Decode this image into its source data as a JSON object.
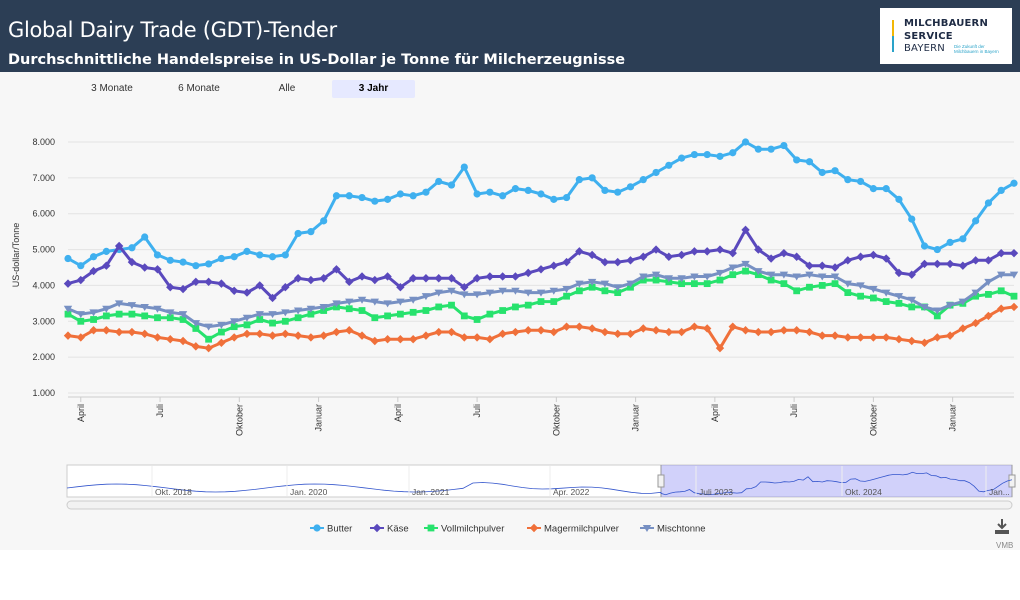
{
  "header": {
    "title": "Global Dairy Trade (GDT)-Tender",
    "subtitle": "Durchschnittliche Handelspreise in US-Dollar je Tonne für Milcherzeugnisse"
  },
  "logo": {
    "line1": "MILCHBAUERN",
    "line2": "SERVICE",
    "line3": "BAYERN",
    "tagline": "Die Zukunft der Milchbauern in Bayern"
  },
  "range_buttons": [
    {
      "label": "3 Monate",
      "active": false
    },
    {
      "label": "6 Monate",
      "active": false
    },
    {
      "label": "Alle",
      "active": false
    },
    {
      "label": "3 Jahr",
      "active": true
    }
  ],
  "navigator": {
    "labels": [
      "Okt. 2018",
      "Jan. 2020",
      "Jan. 2021",
      "Apr. 2022",
      "Juli 2023",
      "Okt. 2024",
      "Jan..."
    ]
  },
  "credit": "VMB",
  "colors": {
    "butter": "#3fb0ef",
    "kaese": "#5a49bd",
    "vollmilch": "#27e26d",
    "mager": "#f0703a",
    "misch": "#7790c3"
  },
  "chart_data": {
    "type": "line",
    "title": "",
    "xlabel": "",
    "ylabel": "US-dollar/Tonne",
    "ylim": [
      1000,
      8500
    ],
    "yticks": [
      "1.000",
      "2.000",
      "3.000",
      "4.000",
      "5.000",
      "6.000",
      "7.000",
      "8.000"
    ],
    "x_tick_labels": [
      "April",
      "Juli",
      "Oktober",
      "Januar",
      "April",
      "Juli",
      "Oktober",
      "Januar",
      "April",
      "Juli",
      "Oktober",
      "Januar"
    ],
    "grid": true,
    "legend_position": "bottom",
    "series": [
      {
        "name": "Butter",
        "color": "#3fb0ef",
        "marker": "circle",
        "values": [
          4750,
          4550,
          4800,
          4950,
          5000,
          5050,
          5350,
          4850,
          4700,
          4650,
          4550,
          4600,
          4750,
          4800,
          4950,
          4850,
          4800,
          4850,
          5450,
          5500,
          5800,
          6500,
          6500,
          6450,
          6350,
          6400,
          6550,
          6500,
          6600,
          6900,
          6800,
          7300,
          6550,
          6600,
          6500,
          6700,
          6650,
          6550,
          6400,
          6450,
          6950,
          7000,
          6650,
          6600,
          6750,
          6950,
          7150,
          7350,
          7550,
          7650,
          7650,
          7600,
          7700,
          8000,
          7800,
          7800,
          7900,
          7500,
          7450,
          7150,
          7200,
          6950,
          6900,
          6700,
          6700,
          6400,
          5850,
          5100,
          5000,
          5200,
          5300,
          5800,
          6300,
          6650,
          6850
        ]
      },
      {
        "name": "Käse",
        "color": "#5a49bd",
        "marker": "diamond",
        "values": [
          4050,
          4150,
          4400,
          4550,
          5100,
          4650,
          4500,
          4450,
          3950,
          3900,
          4100,
          4100,
          4050,
          3850,
          3800,
          4000,
          3650,
          3950,
          4200,
          4150,
          4200,
          4450,
          4100,
          4250,
          4150,
          4250,
          3950,
          4200,
          4200,
          4200,
          4200,
          3950,
          4200,
          4250,
          4250,
          4250,
          4350,
          4450,
          4550,
          4650,
          4950,
          4850,
          4650,
          4650,
          4700,
          4800,
          5000,
          4800,
          4850,
          4950,
          4950,
          5000,
          4900,
          5550,
          5000,
          4750,
          4900,
          4800,
          4550,
          4550,
          4500,
          4700,
          4800,
          4850,
          4750,
          4350,
          4300,
          4600,
          4600,
          4600,
          4550,
          4700,
          4700,
          4900,
          4900
        ]
      },
      {
        "name": "Vollmilchpulver",
        "color": "#27e26d",
        "marker": "square",
        "values": [
          3200,
          3000,
          3050,
          3150,
          3200,
          3200,
          3150,
          3100,
          3100,
          3050,
          2800,
          2500,
          2700,
          2850,
          2900,
          3050,
          2950,
          3000,
          3100,
          3200,
          3300,
          3400,
          3350,
          3300,
          3100,
          3150,
          3200,
          3250,
          3300,
          3400,
          3450,
          3150,
          3050,
          3200,
          3300,
          3400,
          3450,
          3550,
          3550,
          3700,
          3850,
          3950,
          3850,
          3800,
          3950,
          4150,
          4150,
          4100,
          4050,
          4050,
          4050,
          4150,
          4300,
          4400,
          4300,
          4150,
          4050,
          3850,
          3950,
          4000,
          4050,
          3800,
          3700,
          3650,
          3550,
          3500,
          3400,
          3400,
          3150,
          3450,
          3500,
          3700,
          3750,
          3850,
          3700
        ]
      },
      {
        "name": "Magermilchpulver",
        "color": "#f0703a",
        "marker": "diamond",
        "values": [
          2600,
          2550,
          2750,
          2750,
          2700,
          2700,
          2650,
          2550,
          2500,
          2450,
          2300,
          2250,
          2400,
          2550,
          2650,
          2650,
          2600,
          2650,
          2600,
          2550,
          2600,
          2700,
          2750,
          2600,
          2450,
          2500,
          2500,
          2500,
          2600,
          2700,
          2700,
          2550,
          2550,
          2500,
          2650,
          2700,
          2750,
          2750,
          2700,
          2850,
          2850,
          2800,
          2700,
          2650,
          2650,
          2800,
          2750,
          2700,
          2700,
          2850,
          2800,
          2250,
          2850,
          2750,
          2700,
          2700,
          2750,
          2750,
          2700,
          2600,
          2600,
          2550,
          2550,
          2550,
          2550,
          2500,
          2450,
          2400,
          2550,
          2600,
          2800,
          2950,
          3150,
          3350,
          3400
        ]
      },
      {
        "name": "Mischtonne",
        "color": "#7790c3",
        "marker": "triangle-down",
        "values": [
          3350,
          3200,
          3250,
          3350,
          3500,
          3450,
          3400,
          3350,
          3250,
          3200,
          2950,
          2850,
          2900,
          3000,
          3100,
          3200,
          3200,
          3250,
          3300,
          3350,
          3400,
          3500,
          3550,
          3600,
          3550,
          3500,
          3550,
          3600,
          3700,
          3800,
          3850,
          3750,
          3750,
          3800,
          3850,
          3850,
          3800,
          3800,
          3850,
          3900,
          4050,
          4100,
          4050,
          3950,
          4050,
          4250,
          4300,
          4200,
          4200,
          4250,
          4250,
          4350,
          4500,
          4600,
          4400,
          4300,
          4300,
          4250,
          4300,
          4250,
          4250,
          4050,
          4000,
          3900,
          3800,
          3700,
          3600,
          3400,
          3300,
          3450,
          3550,
          3800,
          4100,
          4300,
          4300
        ]
      }
    ]
  }
}
